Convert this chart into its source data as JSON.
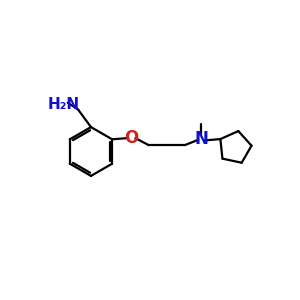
{
  "bg_color": "#ffffff",
  "bond_color": "#000000",
  "N_color": "#1111cc",
  "O_color": "#cc2222",
  "bond_width": 1.6,
  "figsize": [
    3.0,
    3.0
  ],
  "dpi": 100,
  "xlim": [
    0,
    10
  ],
  "ylim": [
    1,
    9
  ]
}
